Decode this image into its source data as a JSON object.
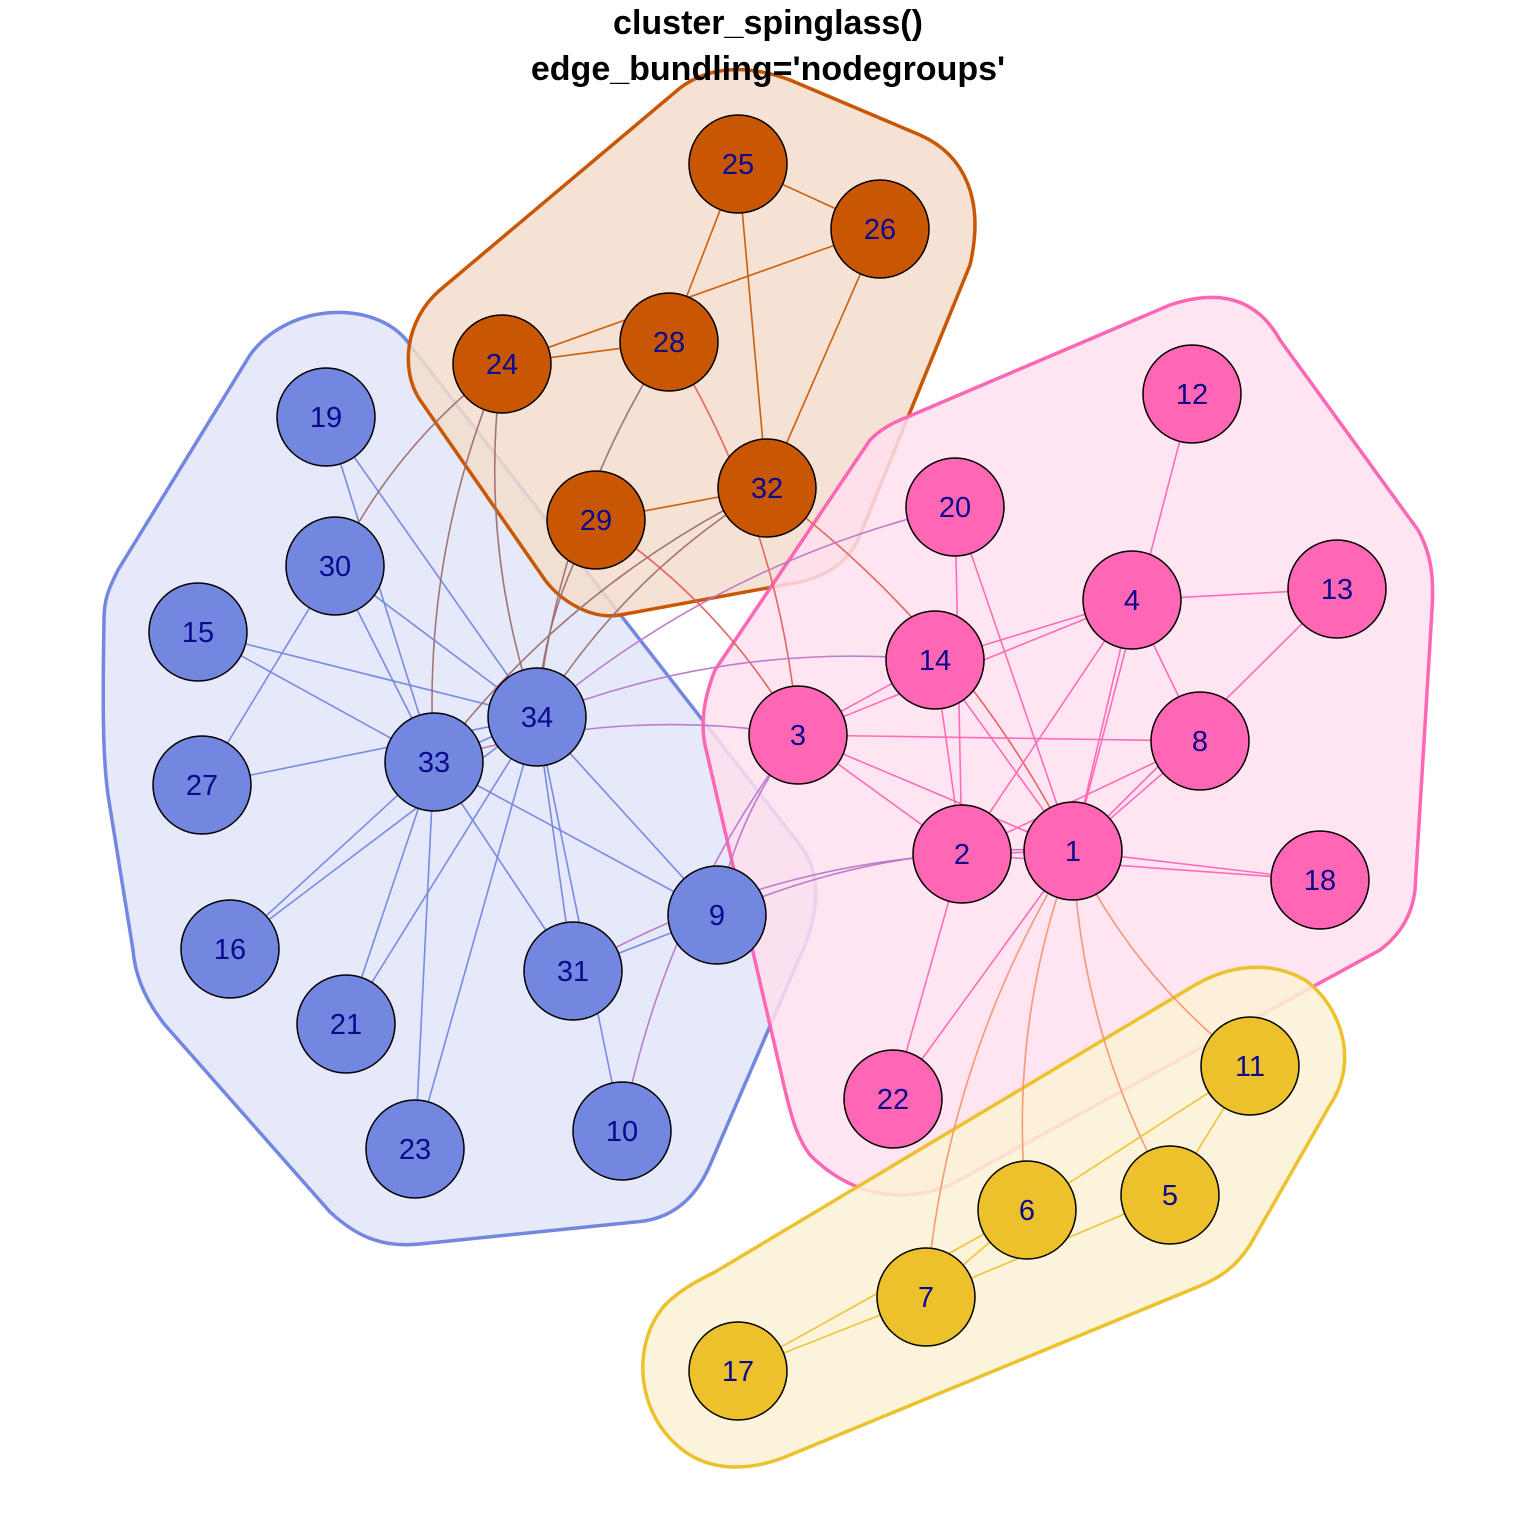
{
  "title": {
    "line1": "cluster_spinglass()",
    "line2": "edge_bundling='nodegroups'"
  },
  "groups": [
    {
      "id": "blue",
      "color": "#7386e0",
      "fill": "#e1e5f8"
    },
    {
      "id": "orange",
      "color": "#c95602",
      "fill": "#f5ddcc"
    },
    {
      "id": "pink",
      "color": "#ff66b4",
      "fill": "#ffdfee"
    },
    {
      "id": "yellow",
      "color": "#ecc12c",
      "fill": "#fbf2d4"
    }
  ],
  "nodes": [
    {
      "label": "1",
      "group": "pink"
    },
    {
      "label": "2",
      "group": "pink"
    },
    {
      "label": "3",
      "group": "pink"
    },
    {
      "label": "4",
      "group": "pink"
    },
    {
      "label": "5",
      "group": "yellow"
    },
    {
      "label": "6",
      "group": "yellow"
    },
    {
      "label": "7",
      "group": "yellow"
    },
    {
      "label": "8",
      "group": "pink"
    },
    {
      "label": "9",
      "group": "blue"
    },
    {
      "label": "10",
      "group": "blue"
    },
    {
      "label": "11",
      "group": "yellow"
    },
    {
      "label": "12",
      "group": "pink"
    },
    {
      "label": "13",
      "group": "pink"
    },
    {
      "label": "14",
      "group": "pink"
    },
    {
      "label": "15",
      "group": "blue"
    },
    {
      "label": "16",
      "group": "blue"
    },
    {
      "label": "17",
      "group": "yellow"
    },
    {
      "label": "18",
      "group": "pink"
    },
    {
      "label": "19",
      "group": "blue"
    },
    {
      "label": "20",
      "group": "pink"
    },
    {
      "label": "21",
      "group": "blue"
    },
    {
      "label": "22",
      "group": "pink"
    },
    {
      "label": "23",
      "group": "blue"
    },
    {
      "label": "24",
      "group": "orange"
    },
    {
      "label": "25",
      "group": "orange"
    },
    {
      "label": "26",
      "group": "orange"
    },
    {
      "label": "27",
      "group": "blue"
    },
    {
      "label": "28",
      "group": "orange"
    },
    {
      "label": "29",
      "group": "orange"
    },
    {
      "label": "30",
      "group": "blue"
    },
    {
      "label": "31",
      "group": "blue"
    },
    {
      "label": "32",
      "group": "orange"
    },
    {
      "label": "33",
      "group": "blue"
    },
    {
      "label": "34",
      "group": "blue"
    }
  ],
  "edges": [
    [
      "1",
      "2"
    ],
    [
      "1",
      "3"
    ],
    [
      "1",
      "4"
    ],
    [
      "1",
      "5"
    ],
    [
      "1",
      "6"
    ],
    [
      "1",
      "7"
    ],
    [
      "1",
      "8"
    ],
    [
      "1",
      "9"
    ],
    [
      "1",
      "11"
    ],
    [
      "1",
      "12"
    ],
    [
      "1",
      "13"
    ],
    [
      "1",
      "14"
    ],
    [
      "1",
      "18"
    ],
    [
      "1",
      "20"
    ],
    [
      "1",
      "22"
    ],
    [
      "1",
      "32"
    ],
    [
      "2",
      "3"
    ],
    [
      "2",
      "4"
    ],
    [
      "2",
      "8"
    ],
    [
      "2",
      "14"
    ],
    [
      "2",
      "18"
    ],
    [
      "2",
      "20"
    ],
    [
      "2",
      "22"
    ],
    [
      "2",
      "31"
    ],
    [
      "3",
      "4"
    ],
    [
      "3",
      "8"
    ],
    [
      "3",
      "9"
    ],
    [
      "3",
      "10"
    ],
    [
      "3",
      "14"
    ],
    [
      "3",
      "28"
    ],
    [
      "3",
      "29"
    ],
    [
      "3",
      "33"
    ],
    [
      "4",
      "8"
    ],
    [
      "4",
      "13"
    ],
    [
      "4",
      "14"
    ],
    [
      "5",
      "7"
    ],
    [
      "5",
      "11"
    ],
    [
      "6",
      "7"
    ],
    [
      "6",
      "11"
    ],
    [
      "6",
      "17"
    ],
    [
      "7",
      "17"
    ],
    [
      "9",
      "31"
    ],
    [
      "9",
      "33"
    ],
    [
      "9",
      "34"
    ],
    [
      "10",
      "34"
    ],
    [
      "14",
      "34"
    ],
    [
      "15",
      "33"
    ],
    [
      "15",
      "34"
    ],
    [
      "16",
      "33"
    ],
    [
      "16",
      "34"
    ],
    [
      "19",
      "33"
    ],
    [
      "19",
      "34"
    ],
    [
      "20",
      "34"
    ],
    [
      "21",
      "33"
    ],
    [
      "21",
      "34"
    ],
    [
      "23",
      "33"
    ],
    [
      "23",
      "34"
    ],
    [
      "24",
      "26"
    ],
    [
      "24",
      "28"
    ],
    [
      "24",
      "30"
    ],
    [
      "24",
      "33"
    ],
    [
      "24",
      "34"
    ],
    [
      "25",
      "26"
    ],
    [
      "25",
      "28"
    ],
    [
      "25",
      "32"
    ],
    [
      "26",
      "32"
    ],
    [
      "27",
      "30"
    ],
    [
      "27",
      "34"
    ],
    [
      "28",
      "34"
    ],
    [
      "29",
      "32"
    ],
    [
      "29",
      "34"
    ],
    [
      "30",
      "33"
    ],
    [
      "30",
      "34"
    ],
    [
      "31",
      "33"
    ],
    [
      "31",
      "34"
    ],
    [
      "32",
      "33"
    ],
    [
      "32",
      "34"
    ],
    [
      "33",
      "34"
    ]
  ]
}
